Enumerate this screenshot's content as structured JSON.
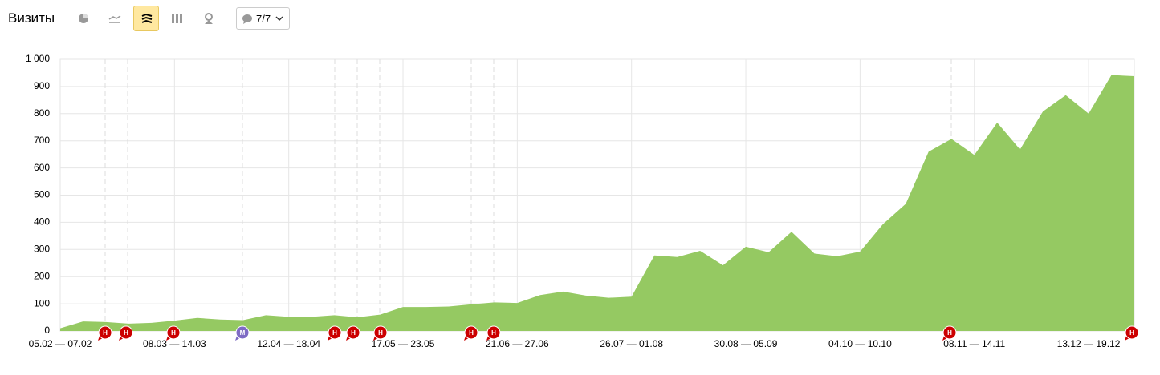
{
  "header": {
    "title": "Визиты",
    "filter": "7/7"
  },
  "chart_data": {
    "type": "area",
    "categories": [
      "05.02 — 07.02",
      null,
      null,
      null,
      null,
      "08.03 — 14.03",
      null,
      null,
      null,
      null,
      "12.04 — 18.04",
      null,
      null,
      null,
      null,
      "17.05 — 23.05",
      null,
      null,
      null,
      null,
      "21.06 — 27.06",
      null,
      null,
      null,
      null,
      "26.07 — 01.08",
      null,
      null,
      null,
      null,
      "30.08 — 05.09",
      null,
      null,
      null,
      null,
      "04.10 — 10.10",
      null,
      null,
      null,
      null,
      "08.11 — 14.11",
      null,
      null,
      null,
      null,
      "13.12 — 19.12",
      null,
      null
    ],
    "series": [
      {
        "name": "Визиты",
        "color": "#95c962",
        "values": [
          10,
          35,
          33,
          27,
          30,
          38,
          48,
          42,
          40,
          58,
          52,
          52,
          58,
          50,
          60,
          88,
          88,
          90,
          98,
          105,
          103,
          132,
          145,
          130,
          122,
          126,
          278,
          272,
          295,
          242,
          310,
          290,
          365,
          285,
          275,
          292,
          393,
          468,
          660,
          707,
          648,
          767,
          668,
          808,
          868,
          800,
          942,
          938
        ]
      }
    ],
    "ylim": [
      0,
      1000
    ],
    "yticks": [
      0,
      100,
      200,
      300,
      400,
      500,
      600,
      700,
      800,
      900,
      {
        "value": 1000,
        "label": "1 000"
      }
    ],
    "grid": true,
    "annotations": [
      "Н",
      "Н",
      "Н",
      "М",
      "Н",
      "Н",
      "Н",
      "Н",
      "Н",
      "Н",
      "Н"
    ]
  }
}
